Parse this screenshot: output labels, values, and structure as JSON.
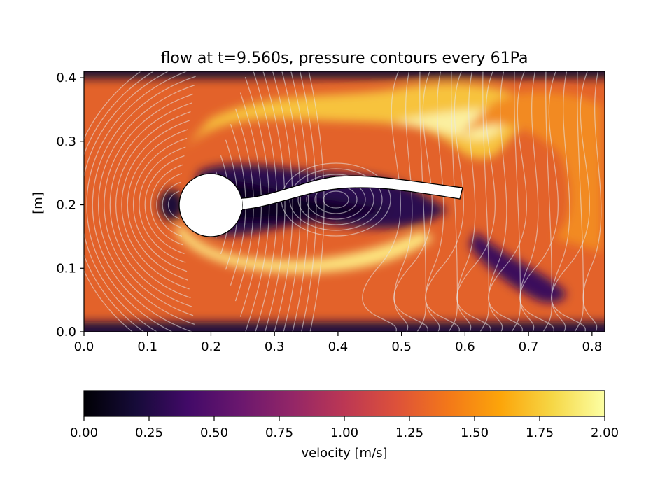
{
  "chart_data": {
    "type": "heatmap",
    "title": "flow at t=9.560s, pressure contours every 61Pa",
    "xlabel": "",
    "ylabel": "[m]",
    "xlim": [
      0.0,
      0.82
    ],
    "ylim": [
      0.0,
      0.41
    ],
    "xticks": [
      0.0,
      0.1,
      0.2,
      0.3,
      0.4,
      0.5,
      0.6,
      0.7,
      0.8
    ],
    "xtick_labels": [
      "0.0",
      "0.1",
      "0.2",
      "0.3",
      "0.4",
      "0.5",
      "0.6",
      "0.7",
      "0.8"
    ],
    "yticks": [
      0.0,
      0.1,
      0.2,
      0.3,
      0.4
    ],
    "ytick_labels": [
      "0.0",
      "0.1",
      "0.2",
      "0.3",
      "0.4"
    ],
    "field": "velocity magnitude",
    "colormap": "inferno",
    "contour_field": "pressure",
    "contour_interval_pa": 61,
    "obstacle": {
      "cylinder_center": [
        0.2,
        0.2
      ],
      "cylinder_radius": 0.05,
      "flag_tip": [
        0.6,
        0.23
      ],
      "flag_thickness": 0.02
    },
    "colorbar": {
      "label": "velocity [m/s]",
      "min": 0.0,
      "max": 2.0,
      "ticks": [
        0.0,
        0.25,
        0.5,
        0.75,
        1.0,
        1.25,
        1.5,
        1.75,
        2.0
      ],
      "tick_labels": [
        "0.00",
        "0.25",
        "0.50",
        "0.75",
        "1.00",
        "1.25",
        "1.50",
        "1.75",
        "2.00"
      ]
    }
  }
}
